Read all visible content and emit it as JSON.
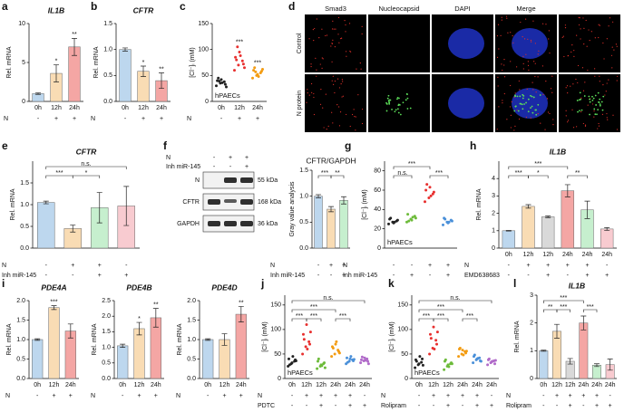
{
  "chart_data": [
    {
      "type": "bar",
      "panel": "a",
      "title": "IL1B",
      "ylabel": "Rel. mRNA",
      "categories": [
        "0h",
        "12h",
        "24h"
      ],
      "colors": [
        "#bdd7ee",
        "#f9dcb4",
        "#f4a6a4"
      ],
      "values": [
        1,
        3.6,
        7
      ],
      "errors": [
        0.1,
        1.1,
        1.1
      ],
      "sig": [
        null,
        "*",
        "**"
      ],
      "ylim": [
        0,
        10
      ],
      "yticks": [
        0,
        5,
        10
      ],
      "rows": [
        {
          "name": "N",
          "values": [
            "-",
            "+",
            "+"
          ]
        }
      ]
    },
    {
      "type": "bar",
      "panel": "b",
      "title": "CFTR",
      "ylabel": "Rel. mRNA",
      "categories": [
        "0h",
        "12h",
        "24h"
      ],
      "colors": [
        "#bdd7ee",
        "#f9dcb4",
        "#f4a6a4"
      ],
      "values": [
        1.0,
        0.58,
        0.4
      ],
      "errors": [
        0.03,
        0.1,
        0.15
      ],
      "sig": [
        null,
        "*",
        "**"
      ],
      "ylim": [
        0,
        1.5
      ],
      "yticks": [
        {
          "value": 0,
          "label": "0.0"
        },
        {
          "value": 0.5,
          "label": "0.5"
        },
        {
          "value": 1,
          "label": "1.0"
        },
        {
          "value": 1.5,
          "label": "1.5"
        }
      ],
      "rows": [
        {
          "name": "N",
          "values": [
            "-",
            "+",
            "+"
          ]
        }
      ]
    },
    {
      "type": "strip",
      "panel": "c",
      "ylabel": "[Cl⁻]ᵢ (mM)",
      "note": "hPAECs",
      "categories": [
        "0h",
        "12h",
        "24h"
      ],
      "colors": [
        "#222222",
        "#e8302f",
        "#f39c12"
      ],
      "points": [
        [
          30,
          35,
          38,
          40,
          42,
          33,
          45,
          36,
          28,
          39
        ],
        [
          60,
          70,
          78,
          85,
          95,
          72,
          80,
          88,
          65,
          105
        ],
        [
          45,
          50,
          55,
          60,
          52,
          58,
          65,
          48,
          62,
          57
        ]
      ],
      "sig": [
        null,
        "***",
        "***"
      ],
      "ylim": [
        0,
        150
      ],
      "yticks": [
        0,
        50,
        100,
        150
      ],
      "rows": [
        {
          "name": "N",
          "values": [
            "-",
            "+",
            "+"
          ]
        }
      ]
    },
    {
      "type": "bar",
      "panel": "e",
      "title": "CFTR",
      "ylabel": "Rel. mRNA",
      "categories": [
        null,
        null,
        null,
        null
      ],
      "colors": [
        "#bdd7ee",
        "#f9dcb4",
        "#c6efce",
        "#f8cbd0"
      ],
      "values": [
        1.05,
        0.45,
        0.93,
        0.97
      ],
      "errors": [
        0.03,
        0.08,
        0.35,
        0.45
      ],
      "brackets": [
        {
          "label": "***",
          "span": [
            0,
            1
          ]
        },
        {
          "label": "*",
          "span": [
            1,
            2
          ]
        },
        {
          "label": "n.s.",
          "span": [
            0,
            3
          ]
        }
      ],
      "ylim": [
        0,
        2
      ],
      "yticks": [
        {
          "value": 0,
          "label": "0.0"
        },
        {
          "value": 0.5,
          "label": "0.5"
        },
        {
          "value": 1,
          "label": "1.0"
        },
        {
          "value": 1.5,
          "label": "1.5"
        }
      ],
      "rows": [
        {
          "name": "N",
          "values": [
            "-",
            "+",
            "+",
            "-"
          ]
        },
        {
          "name": "Inh miR-145",
          "values": [
            "-",
            "-",
            "+",
            "+"
          ]
        }
      ]
    },
    {
      "type": "bar",
      "title": "CFTR/GAPDH",
      "ylabel": "Gray value analysis",
      "categories": [
        null,
        null,
        null
      ],
      "colors": [
        "#bdd7ee",
        "#f9dcb4",
        "#c6efce"
      ],
      "values": [
        1.0,
        0.75,
        0.92
      ],
      "errors": [
        0.03,
        0.05,
        0.07
      ],
      "brackets": [
        {
          "label": "***",
          "span": [
            0,
            1
          ]
        },
        {
          "label": "**",
          "span": [
            1,
            2
          ]
        }
      ],
      "ylim": [
        0,
        1.5
      ],
      "yticks": [
        {
          "value": 0,
          "label": "0.0"
        },
        {
          "value": 0.5,
          "label": "0.5"
        },
        {
          "value": 1,
          "label": "1.0"
        },
        {
          "value": 1.5,
          "label": "1.5"
        }
      ],
      "rows": [
        {
          "name": "N",
          "values": [
            "-",
            "+",
            "+"
          ]
        },
        {
          "name": "Inh miR-145",
          "values": [
            "-",
            "-",
            "+"
          ]
        }
      ]
    },
    {
      "type": "strip",
      "panel": "g",
      "ylabel": "[Cl⁻]ᵢ (mM)",
      "note": "hPAECs",
      "categories": [
        null,
        null,
        null,
        null
      ],
      "colors": [
        "#222222",
        "#6dbb3a",
        "#e8302f",
        "#4a90d9"
      ],
      "points": [
        [
          25,
          27,
          28,
          30,
          26,
          29,
          31,
          27
        ],
        [
          27,
          30,
          33,
          35,
          29,
          31,
          28,
          32
        ],
        [
          48,
          52,
          56,
          60,
          63,
          58,
          66,
          54
        ],
        [
          24,
          27,
          29,
          31,
          26,
          28,
          30,
          27
        ]
      ],
      "brackets": [
        {
          "label": "n.s.",
          "span": [
            0,
            1
          ]
        },
        {
          "label": "***",
          "span": [
            0,
            2
          ]
        },
        {
          "label": "***",
          "span": [
            2,
            3
          ]
        }
      ],
      "ylim": [
        0,
        90
      ],
      "yticks": [
        0,
        20,
        40,
        60,
        80
      ],
      "rows": [
        {
          "name": "N",
          "values": [
            "-",
            "-",
            "+",
            "+"
          ]
        },
        {
          "name": "Inh miR-145",
          "values": [
            "-",
            "+",
            "-",
            "+"
          ]
        }
      ]
    },
    {
      "type": "bar",
      "panel": "h",
      "title": "IL1B",
      "ylabel": "Rel. mRNA",
      "categories": [
        "0h",
        "12h",
        "12h",
        "24h",
        "24h",
        "24h"
      ],
      "colors": [
        "#bdd7ee",
        "#f9dcb4",
        "#d9d9d9",
        "#f4a6a4",
        "#c6efce",
        "#f8cbd0"
      ],
      "values": [
        1,
        2.4,
        1.8,
        3.3,
        2.2,
        1.1
      ],
      "errors": [
        0.02,
        0.1,
        0.05,
        0.35,
        0.5,
        0.08
      ],
      "brackets": [
        {
          "label": "***",
          "span": [
            0,
            1
          ]
        },
        {
          "label": "*",
          "span": [
            1,
            2
          ]
        },
        {
          "label": "***",
          "span": [
            0,
            3
          ]
        },
        {
          "label": "**",
          "span": [
            3,
            4
          ]
        }
      ],
      "ylim": [
        0,
        5
      ],
      "yticks": [
        0,
        1,
        2,
        3,
        4
      ],
      "rows": [
        {
          "name": "N",
          "values": [
            "-",
            "+",
            "+",
            "+",
            "+",
            "-"
          ]
        },
        {
          "name": "EMD638683",
          "values": [
            "-",
            "-",
            "+",
            "-",
            "+",
            "+"
          ]
        }
      ]
    },
    {
      "type": "bar",
      "panel": "i",
      "title": "PDE4A",
      "ylabel": "Rel. mRNA",
      "categories": [
        "0h",
        "12h",
        "24h"
      ],
      "colors": [
        "#bdd7ee",
        "#f9dcb4",
        "#f4a6a4"
      ],
      "values": [
        1.0,
        1.82,
        1.22
      ],
      "errors": [
        0.02,
        0.05,
        0.18
      ],
      "sig": [
        null,
        "***",
        null
      ],
      "ylim": [
        0,
        2
      ],
      "yticks": [
        {
          "value": 0,
          "label": "0.0"
        },
        {
          "value": 0.5,
          "label": "0.5"
        },
        {
          "value": 1,
          "label": "1.0"
        },
        {
          "value": 1.5,
          "label": "1.5"
        },
        {
          "value": 2,
          "label": "2.0"
        }
      ],
      "rows": [
        {
          "name": "N",
          "values": [
            "-",
            "+",
            "+"
          ]
        }
      ]
    },
    {
      "type": "bar",
      "title": "PDE4B",
      "ylabel": "Rel. mRNA",
      "categories": [
        "0h",
        "12h",
        "24h"
      ],
      "colors": [
        "#bdd7ee",
        "#f9dcb4",
        "#f4a6a4"
      ],
      "values": [
        1.05,
        1.6,
        1.95
      ],
      "errors": [
        0.05,
        0.2,
        0.3
      ],
      "sig": [
        null,
        "*",
        "**"
      ],
      "ylim": [
        0,
        2.5
      ],
      "yticks": [
        {
          "value": 0,
          "label": "0.0"
        },
        {
          "value": 0.5,
          "label": "0.5"
        },
        {
          "value": 1,
          "label": "1.0"
        },
        {
          "value": 1.5,
          "label": "1.5"
        },
        {
          "value": 2,
          "label": "2.0"
        },
        {
          "value": 2.5,
          "label": "2.5"
        }
      ],
      "rows": [
        {
          "name": "N",
          "values": [
            "-",
            "+",
            "+"
          ]
        }
      ]
    },
    {
      "type": "bar",
      "title": "PDE4D",
      "ylabel": "Rel. mRNA",
      "categories": [
        "0h",
        "12h",
        "24h"
      ],
      "colors": [
        "#bdd7ee",
        "#f9dcb4",
        "#f4a6a4"
      ],
      "values": [
        1.0,
        1.0,
        1.65
      ],
      "errors": [
        0.02,
        0.15,
        0.2
      ],
      "sig": [
        null,
        null,
        "**"
      ],
      "ylim": [
        0,
        2
      ],
      "yticks": [
        {
          "value": 0,
          "label": "0.0"
        },
        {
          "value": 0.5,
          "label": "0.5"
        },
        {
          "value": 1,
          "label": "1.0"
        },
        {
          "value": 1.5,
          "label": "1.5"
        },
        {
          "value": 2,
          "label": "2.0"
        }
      ],
      "rows": [
        {
          "name": "N",
          "values": [
            "-",
            "+",
            "+"
          ]
        }
      ]
    },
    {
      "type": "strip",
      "panel": "j",
      "ylabel": "[Cl⁻]ᵢ (mM)",
      "note": "hPAECs",
      "categories": [
        "0h",
        "12h",
        "12h",
        "24h",
        "24h",
        "24h"
      ],
      "colors": [
        "#222222",
        "#e8302f",
        "#6dbb3a",
        "#f39c12",
        "#4a90d9",
        "#b06ac9"
      ],
      "points": [
        [
          25,
          30,
          35,
          40,
          32,
          38,
          28,
          45,
          36
        ],
        [
          50,
          65,
          75,
          90,
          110,
          70,
          80,
          60,
          95
        ],
        [
          20,
          25,
          30,
          35,
          28,
          32,
          40,
          26,
          22
        ],
        [
          45,
          50,
          58,
          65,
          70,
          55,
          62,
          75,
          52
        ],
        [
          30,
          35,
          38,
          42,
          40,
          36,
          33,
          45,
          39
        ],
        [
          32,
          36,
          40,
          38,
          42,
          35,
          44,
          37,
          30
        ]
      ],
      "brackets": [
        {
          "label": "***",
          "span": [
            0,
            1
          ]
        },
        {
          "label": "***",
          "span": [
            1,
            2
          ]
        },
        {
          "label": "***",
          "span": [
            0,
            3
          ]
        },
        {
          "label": "***",
          "span": [
            3,
            4
          ]
        },
        {
          "label": "n.s.",
          "span": [
            0,
            5
          ]
        }
      ],
      "ylim": [
        0,
        170
      ],
      "yticks": [
        0,
        50,
        100,
        150
      ],
      "rows": [
        {
          "name": "N",
          "values": [
            "-",
            "+",
            "+",
            "+",
            "+",
            "-"
          ]
        },
        {
          "name": "PDTC",
          "values": [
            "-",
            "-",
            "+",
            "-",
            "+",
            "+"
          ]
        }
      ]
    },
    {
      "type": "strip",
      "panel": "k",
      "ylabel": "[Cl⁻]ᵢ (mM)",
      "note": "hPAECs",
      "categories": [
        "0h",
        "12h",
        "12h",
        "24h",
        "24h",
        "24h"
      ],
      "colors": [
        "#222222",
        "#e8302f",
        "#6dbb3a",
        "#f39c12",
        "#4a90d9",
        "#b06ac9"
      ],
      "points": [
        [
          22,
          28,
          33,
          38,
          30,
          40,
          35,
          45,
          27
        ],
        [
          50,
          62,
          78,
          90,
          105,
          70,
          82,
          60,
          95
        ],
        [
          18,
          25,
          30,
          35,
          28,
          32,
          38,
          24,
          30
        ],
        [
          45,
          50,
          55,
          60,
          58,
          52,
          62,
          48,
          56
        ],
        [
          32,
          38,
          42,
          45,
          40,
          36,
          48,
          41,
          35
        ],
        [
          28,
          32,
          36,
          38,
          34,
          30,
          40,
          35,
          37
        ]
      ],
      "brackets": [
        {
          "label": "***",
          "span": [
            0,
            1
          ]
        },
        {
          "label": "***",
          "span": [
            1,
            2
          ]
        },
        {
          "label": "***",
          "span": [
            0,
            3
          ]
        },
        {
          "label": "***",
          "span": [
            3,
            4
          ]
        },
        {
          "label": "n.s.",
          "span": [
            0,
            5
          ]
        }
      ],
      "ylim": [
        0,
        170
      ],
      "yticks": [
        0,
        50,
        100,
        150
      ],
      "rows": [
        {
          "name": "N",
          "values": [
            "-",
            "+",
            "+",
            "+",
            "+",
            "-"
          ]
        },
        {
          "name": "Rolipram",
          "values": [
            "-",
            "-",
            "+",
            "-",
            "+",
            "+"
          ]
        }
      ]
    },
    {
      "type": "bar",
      "panel": "l",
      "title": "IL1B",
      "ylabel": "Rel. mRNA",
      "categories": [
        "0h",
        "12h",
        "12h",
        "24h",
        "24h",
        "24h"
      ],
      "colors": [
        "#bdd7ee",
        "#f9dcb4",
        "#d9d9d9",
        "#f4a6a4",
        "#c6efce",
        "#f8cbd0"
      ],
      "values": [
        1,
        1.7,
        0.62,
        2.0,
        0.48,
        0.5
      ],
      "errors": [
        0.02,
        0.25,
        0.1,
        0.25,
        0.05,
        0.2
      ],
      "brackets": [
        {
          "label": "**",
          "span": [
            0,
            1
          ]
        },
        {
          "label": "***",
          "span": [
            1,
            2
          ]
        },
        {
          "label": "***",
          "span": [
            0,
            3
          ]
        },
        {
          "label": "***",
          "span": [
            3,
            4
          ]
        }
      ],
      "ylim": [
        0,
        3
      ],
      "yticks": [
        0,
        1,
        2,
        3
      ],
      "rows": [
        {
          "name": "N",
          "values": [
            "-",
            "+",
            "+",
            "+",
            "+",
            "-"
          ]
        },
        {
          "name": "Rolipram",
          "values": [
            "-",
            "-",
            "+",
            "-",
            "+",
            "+"
          ]
        }
      ]
    }
  ],
  "image_panel": {
    "panel": "d",
    "columns": [
      {
        "name": "Smad3",
        "color": "#e8302f"
      },
      {
        "name": "Nucleocapsid",
        "color": "#2ca02c"
      },
      {
        "name": "DAPI",
        "color": "#1f3fd6"
      },
      {
        "name": "Merge",
        "color": "#111111"
      }
    ],
    "rows": [
      "Control",
      "N protein"
    ]
  },
  "blot": {
    "panel": "f",
    "rows": [
      {
        "name": "N",
        "values": [
          "-",
          "+",
          "+"
        ]
      },
      {
        "name": "Inh miR-145",
        "values": [
          "-",
          "-",
          "+"
        ]
      }
    ],
    "bands": [
      {
        "name": "N",
        "size": "55 kDa"
      },
      {
        "name": "CFTR",
        "size": "168 kDa"
      },
      {
        "name": "GAPDH",
        "size": "36 kDa"
      }
    ]
  }
}
